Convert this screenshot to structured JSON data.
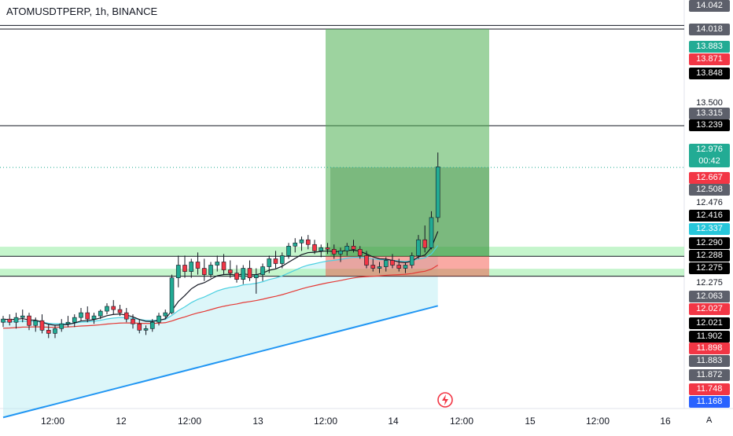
{
  "symbol_title": "ATOMUSDTPERP, 1h, BINANCE",
  "currency": "USDT",
  "auto_label": "A",
  "colors": {
    "up": "#22ab94",
    "down": "#f23645",
    "ema_fast": "#131722",
    "ema_mid": "#4dd0e1",
    "ema_slow": "#e53935",
    "ema_long": "#2196f3",
    "target_zone": "#4caf50",
    "stop_zone": "#f44336",
    "support_band": "#b2f2bb"
  },
  "icons": {
    "flash": "lightning-icon"
  },
  "price_labels": [
    {
      "text": "14.042",
      "style": "gray"
    },
    {
      "text": "14.018",
      "style": "gray"
    },
    {
      "text": "13.883",
      "style": "green"
    },
    {
      "text": "13.871",
      "style": "red"
    },
    {
      "text": "13.848",
      "style": "black"
    },
    {
      "text": "13.500",
      "style": "plain"
    },
    {
      "text": "13.315",
      "style": "gray"
    },
    {
      "text": "13.239",
      "style": "black"
    },
    {
      "text": "12.976",
      "style": "green",
      "sub": "00:42"
    },
    {
      "text": "12.667",
      "style": "red"
    },
    {
      "text": "12.508",
      "style": "gray"
    },
    {
      "text": "12.476",
      "style": "plain"
    },
    {
      "text": "12.416",
      "style": "black"
    },
    {
      "text": "12.337",
      "style": "cyan"
    },
    {
      "text": "12.290",
      "style": "black"
    },
    {
      "text": "12.288",
      "style": "black"
    },
    {
      "text": "12.275",
      "style": "black"
    },
    {
      "text": "12.275",
      "style": "plain"
    },
    {
      "text": "12.063",
      "style": "gray"
    },
    {
      "text": "12.027",
      "style": "red"
    },
    {
      "text": "12.021",
      "style": "black"
    },
    {
      "text": "11.902",
      "style": "black"
    },
    {
      "text": "11.898",
      "style": "red"
    },
    {
      "text": "11.883",
      "style": "gray"
    },
    {
      "text": "11.872",
      "style": "gray"
    },
    {
      "text": "11.748",
      "style": "red"
    },
    {
      "text": "11.168",
      "style": "blue"
    }
  ],
  "time_ticks": [
    "12:00",
    "12",
    "12:00",
    "13",
    "12:00",
    "14",
    "12:00",
    "15",
    "12:00",
    "16"
  ],
  "chart_data": {
    "type": "candlestick",
    "title": "ATOMUSDTPERP, 1h, BINANCE",
    "y_unit": "USDT",
    "y_range": [
      11.5,
      14.1
    ],
    "last_price": 12.976,
    "countdown": "00:42",
    "horizontal_levels": [
      13.871,
      13.848,
      13.239,
      12.416,
      12.29
    ],
    "support_bands": [
      [
        12.416,
        12.476
      ],
      [
        12.29,
        12.337
      ]
    ],
    "position": {
      "entry": 12.416,
      "target": 13.848,
      "stop": 12.29
    },
    "candles": [
      [
        12.0,
        12.04,
        11.97,
        12.02
      ],
      [
        12.02,
        12.05,
        11.98,
        12.0
      ],
      [
        12.0,
        12.06,
        11.96,
        12.03
      ],
      [
        12.03,
        12.08,
        12.0,
        12.04
      ],
      [
        12.04,
        12.06,
        11.95,
        11.98
      ],
      [
        11.98,
        12.03,
        11.94,
        12.01
      ],
      [
        12.01,
        12.05,
        11.93,
        11.95
      ],
      [
        11.95,
        11.99,
        11.9,
        11.93
      ],
      [
        11.93,
        11.98,
        11.9,
        11.96
      ],
      [
        11.96,
        12.02,
        11.94,
        11.99
      ],
      [
        11.99,
        12.04,
        11.97,
        12.0
      ],
      [
        12.0,
        12.05,
        11.97,
        12.03
      ],
      [
        12.03,
        12.09,
        12.01,
        12.06
      ],
      [
        12.06,
        12.1,
        12.0,
        12.02
      ],
      [
        12.02,
        12.06,
        11.99,
        12.04
      ],
      [
        12.04,
        12.08,
        12.02,
        12.07
      ],
      [
        12.07,
        12.12,
        12.05,
        12.1
      ],
      [
        12.1,
        12.14,
        12.05,
        12.08
      ],
      [
        12.08,
        12.11,
        12.04,
        12.06
      ],
      [
        12.06,
        12.09,
        12.0,
        12.02
      ],
      [
        12.02,
        12.05,
        11.96,
        11.99
      ],
      [
        11.99,
        12.02,
        11.93,
        11.95
      ],
      [
        11.95,
        11.98,
        11.92,
        11.96
      ],
      [
        11.96,
        12.02,
        11.94,
        12.0
      ],
      [
        12.0,
        12.06,
        11.98,
        12.04
      ],
      [
        12.04,
        12.08,
        12.02,
        12.06
      ],
      [
        12.06,
        12.3,
        12.05,
        12.28
      ],
      [
        12.28,
        12.42,
        12.22,
        12.36
      ],
      [
        12.36,
        12.42,
        12.28,
        12.32
      ],
      [
        12.32,
        12.4,
        12.28,
        12.38
      ],
      [
        12.38,
        12.44,
        12.3,
        12.34
      ],
      [
        12.34,
        12.4,
        12.26,
        12.3
      ],
      [
        12.3,
        12.38,
        12.28,
        12.36
      ],
      [
        12.36,
        12.42,
        12.32,
        12.38
      ],
      [
        12.38,
        12.43,
        12.3,
        12.33
      ],
      [
        12.33,
        12.39,
        12.28,
        12.31
      ],
      [
        12.31,
        12.36,
        12.25,
        12.27
      ],
      [
        12.27,
        12.36,
        12.24,
        12.34
      ],
      [
        12.34,
        12.39,
        12.26,
        12.28
      ],
      [
        12.28,
        12.34,
        12.18,
        12.3
      ],
      [
        12.3,
        12.37,
        12.26,
        12.35
      ],
      [
        12.35,
        12.42,
        12.31,
        12.4
      ],
      [
        12.4,
        12.45,
        12.34,
        12.37
      ],
      [
        12.37,
        12.44,
        12.34,
        12.42
      ],
      [
        12.42,
        12.5,
        12.4,
        12.48
      ],
      [
        12.48,
        12.53,
        12.44,
        12.5
      ],
      [
        12.5,
        12.54,
        12.45,
        12.52
      ],
      [
        12.52,
        12.55,
        12.46,
        12.49
      ],
      [
        12.49,
        12.52,
        12.43,
        12.45
      ],
      [
        12.45,
        12.49,
        12.41,
        12.47
      ],
      [
        12.47,
        12.5,
        12.43,
        12.46
      ],
      [
        12.46,
        12.49,
        12.4,
        12.43
      ],
      [
        12.43,
        12.47,
        12.38,
        12.45
      ],
      [
        12.45,
        12.5,
        12.42,
        12.48
      ],
      [
        12.48,
        12.52,
        12.44,
        12.46
      ],
      [
        12.46,
        12.48,
        12.4,
        12.42
      ],
      [
        12.42,
        12.45,
        12.34,
        12.36
      ],
      [
        12.36,
        12.4,
        12.32,
        12.34
      ],
      [
        12.34,
        12.38,
        12.31,
        12.35
      ],
      [
        12.35,
        12.41,
        12.32,
        12.39
      ],
      [
        12.39,
        12.43,
        12.34,
        12.36
      ],
      [
        12.36,
        12.4,
        12.32,
        12.34
      ],
      [
        12.34,
        12.38,
        12.31,
        12.36
      ],
      [
        12.36,
        12.44,
        12.34,
        12.42
      ],
      [
        12.42,
        12.55,
        12.4,
        12.52
      ],
      [
        12.52,
        12.61,
        12.44,
        12.47
      ],
      [
        12.47,
        12.7,
        12.46,
        12.66
      ],
      [
        12.66,
        13.07,
        12.63,
        12.98
      ]
    ]
  }
}
